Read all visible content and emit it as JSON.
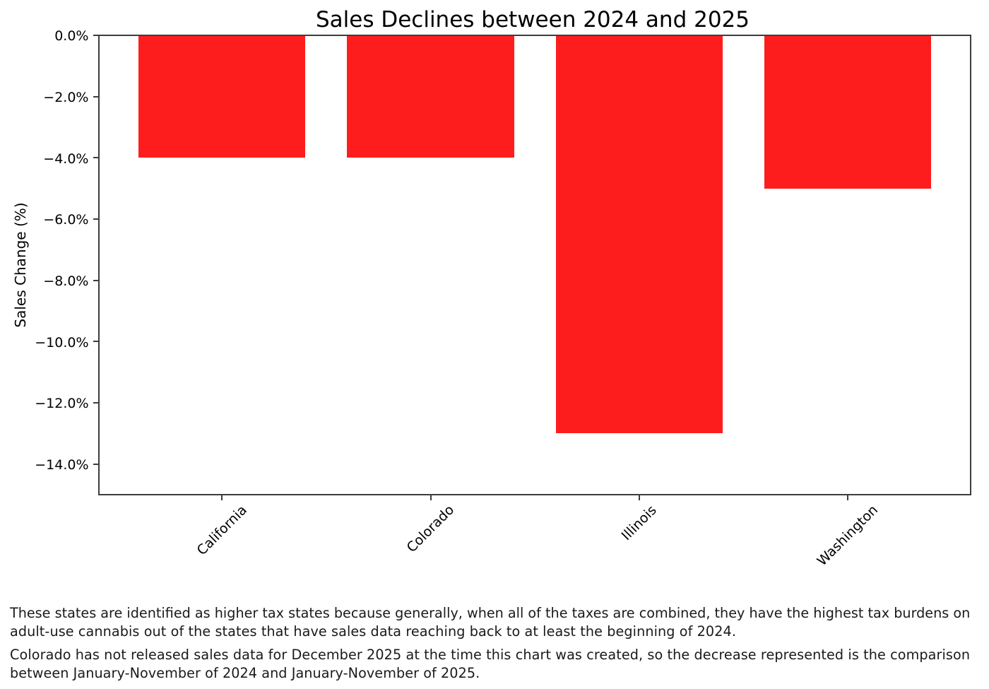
{
  "page": {
    "background_color": "#ffffff"
  },
  "chart_data": {
    "type": "bar",
    "title": "Sales Declines between 2024 and 2025",
    "xlabel": "",
    "ylabel": "Sales Change (%)",
    "categories": [
      "California",
      "Colorado",
      "Illinois",
      "Washington"
    ],
    "values": [
      -4.0,
      -4.0,
      -13.0,
      -5.0
    ],
    "value_unit": "percent",
    "bar_color": "#fe1d1d",
    "ylim": [
      -15,
      0
    ],
    "ytick_values": [
      0,
      -2,
      -4,
      -6,
      -8,
      -10,
      -12,
      -14
    ],
    "ytick_labels": [
      "0.0%",
      "−2.0%",
      "−4.0%",
      "−6.0%",
      "−8.0%",
      "−10.0%",
      "−12.0%",
      "−14.0%"
    ],
    "grid": false,
    "legend_position": "none",
    "x_tick_label_rotation_deg": 45
  },
  "footnotes": [
    {
      "lines": [
        "These states are identified as higher tax states because generally, when all of the taxes are combined, they have the highest tax burdens on",
        "adult-use cannabis out of the states that have sales data reaching back to at least the beginning of 2024."
      ]
    },
    {
      "lines": [
        "Colorado has not released sales data for December 2025 at the time this chart was created, so the decrease represented is the comparison",
        "between January-November of 2024 and January-November of 2025."
      ]
    }
  ]
}
